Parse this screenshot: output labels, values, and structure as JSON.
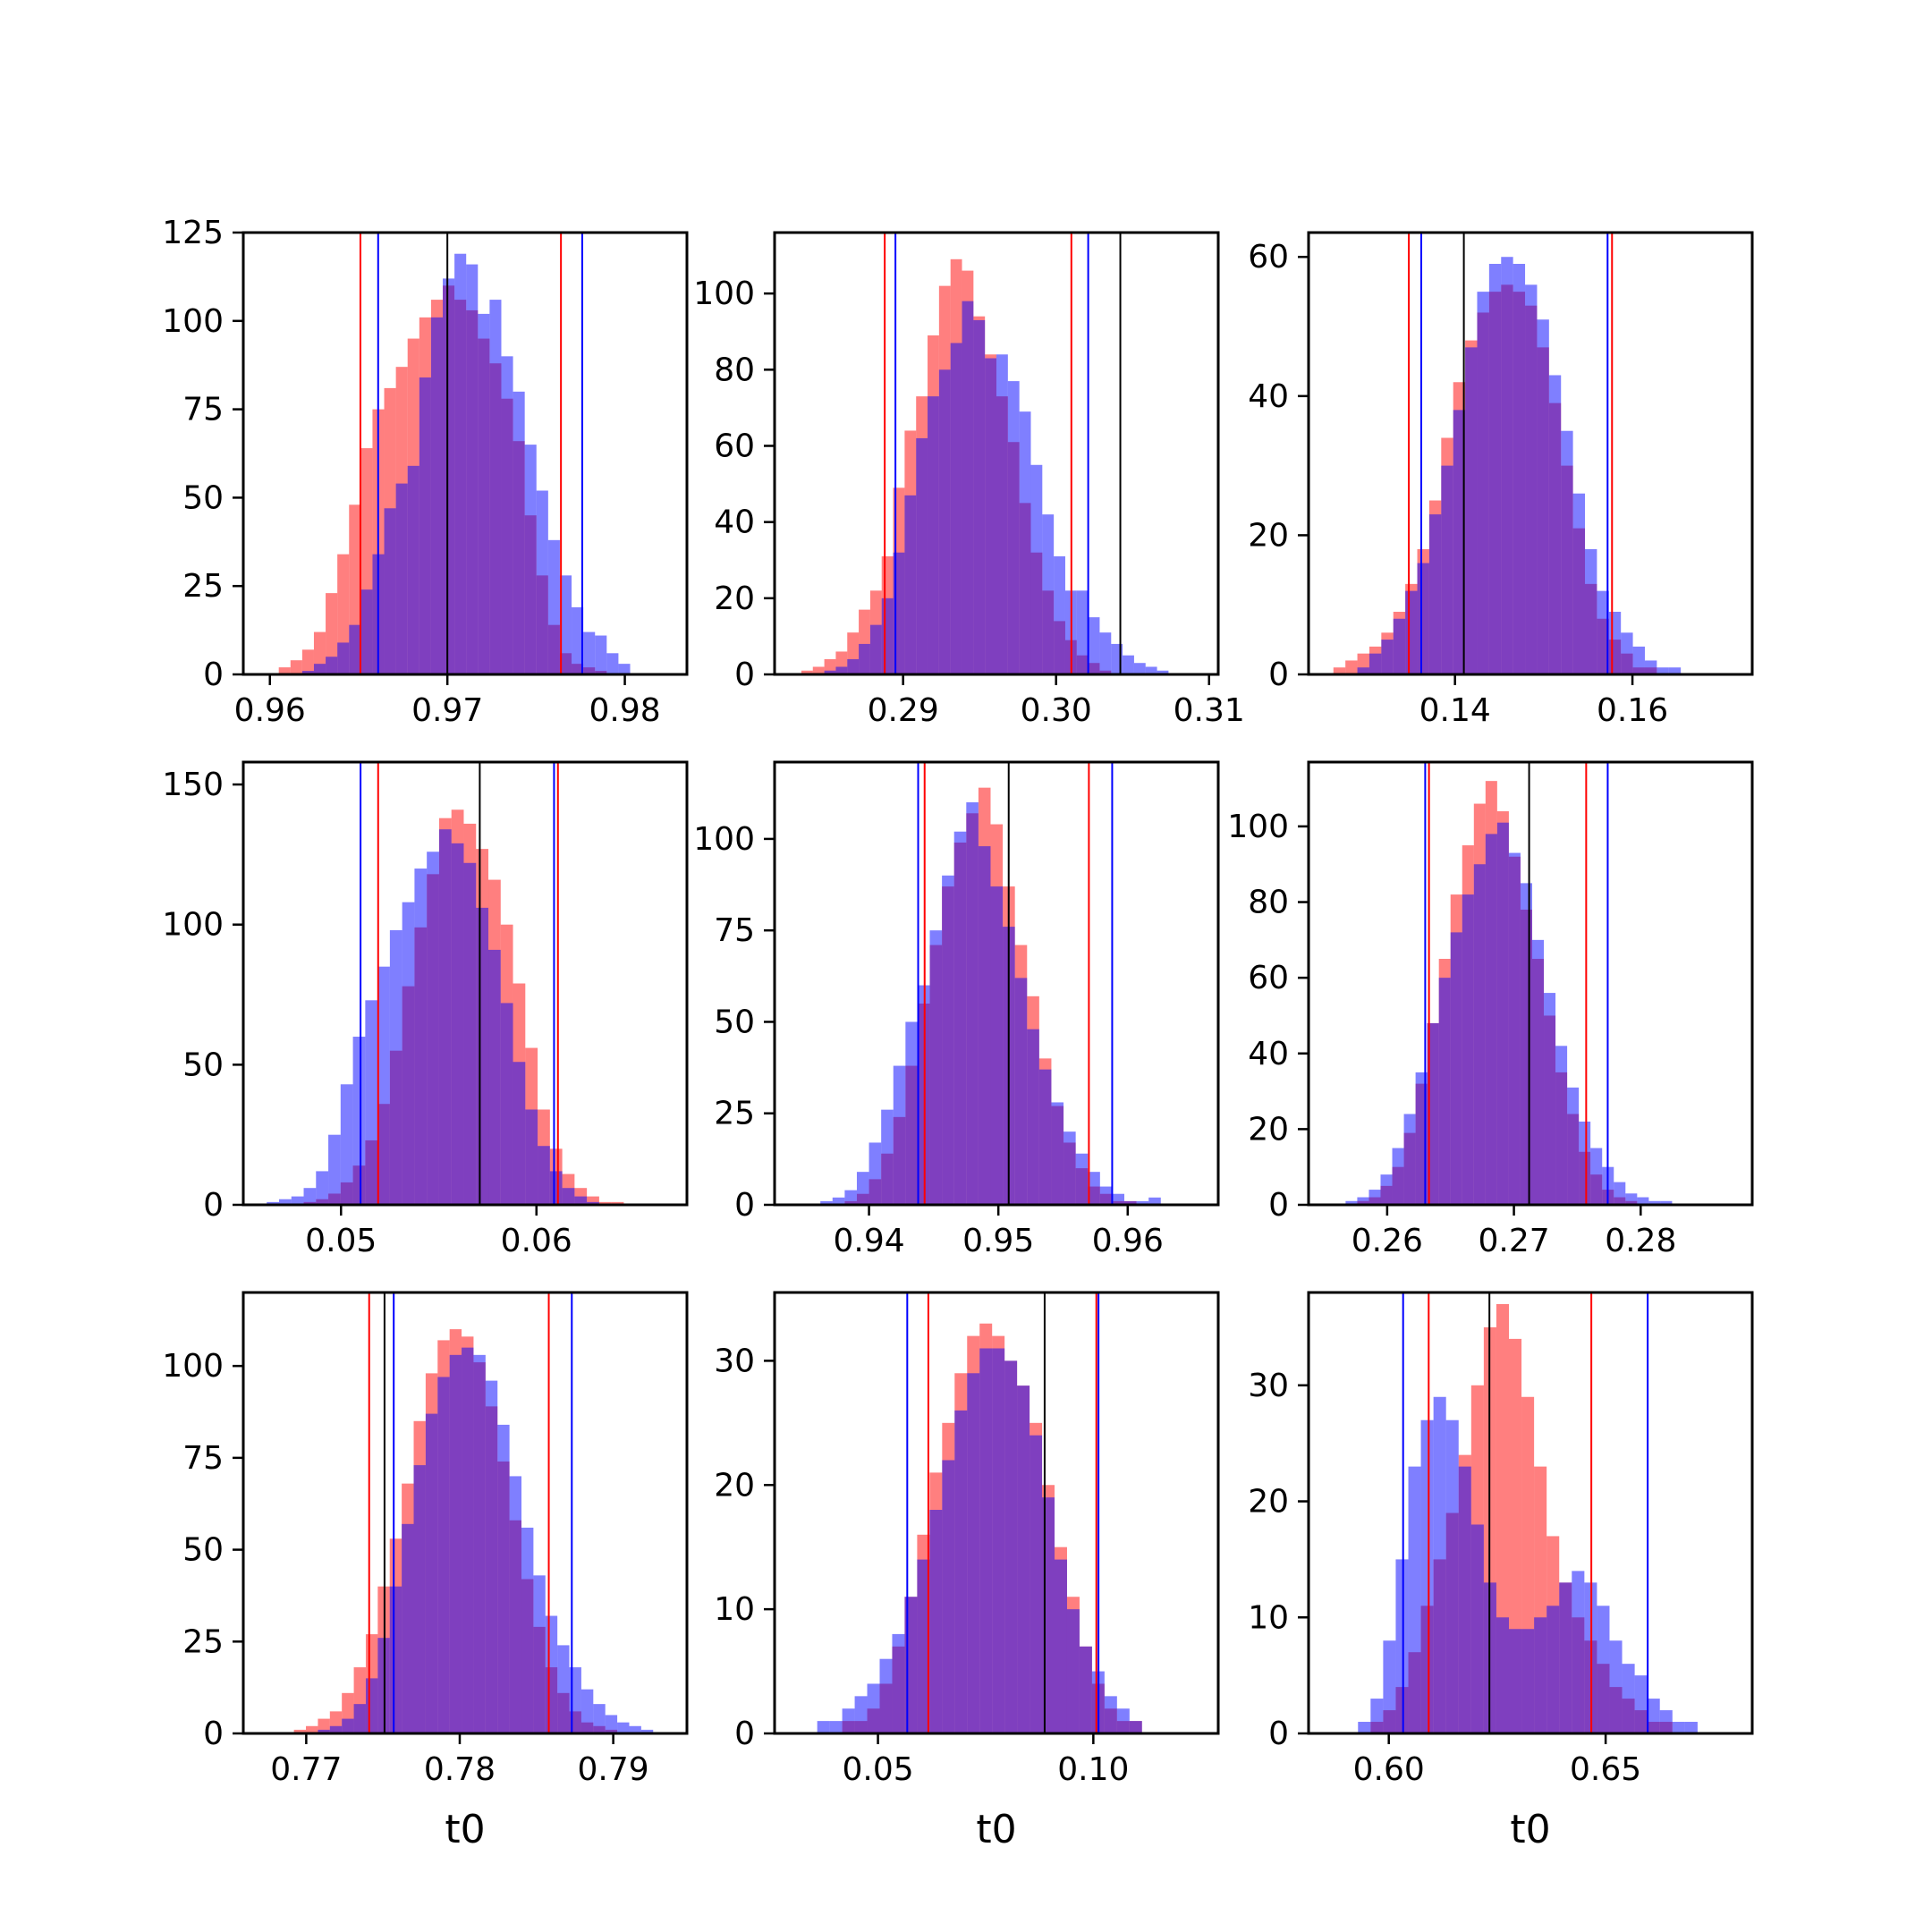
{
  "colors": {
    "red_series": "#ff0000",
    "blue_series": "#0000ff",
    "marker_black": "#000000",
    "bar_alpha": 0.5
  },
  "chart_data": [
    {
      "type": "histogram",
      "xlim": [
        0.9585,
        0.9835
      ],
      "ylim": [
        0,
        125
      ],
      "xticks": [
        0.96,
        0.97,
        0.98
      ],
      "xtick_labels": [
        "0.96",
        "0.97",
        "0.98"
      ],
      "yticks": [
        0,
        25,
        50,
        75,
        100,
        125
      ],
      "ytick_labels": [
        "0",
        "25",
        "50",
        "75",
        "100",
        "125"
      ],
      "xlabel": "",
      "bin_start": 0.9605,
      "bin_width": 0.00066,
      "series": [
        {
          "color": "red",
          "counts": [
            2,
            4,
            7,
            12,
            23,
            34,
            48,
            64,
            75,
            81,
            87,
            95,
            101,
            106,
            110,
            106,
            103,
            95,
            88,
            78,
            66,
            45,
            28,
            14,
            6,
            3,
            2,
            1,
            0,
            0,
            0
          ]
        },
        {
          "color": "blue",
          "counts": [
            0,
            0,
            1,
            3,
            5,
            9,
            14,
            24,
            34,
            47,
            54,
            59,
            84,
            101,
            112,
            119,
            116,
            102,
            106,
            90,
            80,
            65,
            52,
            38,
            28,
            19,
            12,
            11,
            6,
            3,
            0
          ]
        }
      ],
      "vlines": [
        {
          "color": "red",
          "x": 0.9651
        },
        {
          "color": "red",
          "x": 0.9764
        },
        {
          "color": "blue",
          "x": 0.9661
        },
        {
          "color": "blue",
          "x": 0.9776
        },
        {
          "color": "black",
          "x": 0.97
        }
      ]
    },
    {
      "type": "histogram",
      "xlim": [
        0.2816,
        0.3106
      ],
      "ylim": [
        0,
        116
      ],
      "xticks": [
        0.29,
        0.3,
        0.31
      ],
      "xtick_labels": [
        "0.29",
        "0.30",
        "0.31"
      ],
      "yticks": [
        0,
        20,
        40,
        60,
        80,
        100
      ],
      "ytick_labels": [
        "0",
        "20",
        "40",
        "60",
        "80",
        "100"
      ],
      "xlabel": "",
      "bin_start": 0.2826,
      "bin_width": 0.00075,
      "series": [
        {
          "color": "red",
          "counts": [
            0,
            1,
            2,
            4,
            6,
            11,
            17,
            22,
            31,
            49,
            64,
            73,
            89,
            102,
            109,
            106,
            94,
            84,
            73,
            61,
            45,
            32,
            22,
            14,
            9,
            5,
            3,
            1,
            0,
            0,
            0,
            0,
            0,
            0,
            0
          ]
        },
        {
          "color": "blue",
          "counts": [
            0,
            0,
            0,
            1,
            2,
            4,
            8,
            13,
            20,
            32,
            47,
            62,
            73,
            80,
            87,
            98,
            93,
            83,
            84,
            77,
            69,
            55,
            42,
            31,
            22,
            22,
            15,
            11,
            8,
            5,
            3,
            2,
            1,
            0,
            0
          ]
        }
      ],
      "vlines": [
        {
          "color": "red",
          "x": 0.2888
        },
        {
          "color": "red",
          "x": 0.301
        },
        {
          "color": "blue",
          "x": 0.2895
        },
        {
          "color": "blue",
          "x": 0.3021
        },
        {
          "color": "black",
          "x": 0.3042
        }
      ]
    },
    {
      "type": "histogram",
      "xlim": [
        0.1235,
        0.1735
      ],
      "ylim": [
        0,
        63.5
      ],
      "xticks": [
        0.14,
        0.16
      ],
      "xtick_labels": [
        "0.14",
        "0.16"
      ],
      "yticks": [
        0,
        20,
        40,
        60
      ],
      "ytick_labels": [
        "0",
        "20",
        "40",
        "60"
      ],
      "xlabel": "",
      "bin_start": 0.1263,
      "bin_width": 0.00135,
      "series": [
        {
          "color": "red",
          "counts": [
            1,
            2,
            3,
            4,
            6,
            9,
            13,
            18,
            25,
            34,
            42,
            48,
            52,
            55,
            56,
            55,
            53,
            47,
            39,
            30,
            21,
            13,
            8,
            5,
            3,
            1,
            1,
            0,
            0,
            0,
            0,
            0,
            0
          ]
        },
        {
          "color": "blue",
          "counts": [
            0,
            0,
            1,
            3,
            5,
            8,
            12,
            16,
            23,
            30,
            38,
            47,
            55,
            59,
            60,
            59,
            56,
            51,
            43,
            35,
            26,
            18,
            12,
            9,
            6,
            4,
            2,
            1,
            1,
            0,
            0,
            0,
            0
          ]
        }
      ],
      "vlines": [
        {
          "color": "red",
          "x": 0.1348
        },
        {
          "color": "red",
          "x": 0.1577
        },
        {
          "color": "blue",
          "x": 0.1362
        },
        {
          "color": "blue",
          "x": 0.1572
        },
        {
          "color": "black",
          "x": 0.141
        }
      ]
    },
    {
      "type": "histogram",
      "xlim": [
        0.045,
        0.0677
      ],
      "ylim": [
        0,
        158
      ],
      "xticks": [
        0.05,
        0.06
      ],
      "xtick_labels": [
        "0.05",
        "0.06"
      ],
      "yticks": [
        0,
        50,
        100,
        150
      ],
      "ytick_labels": [
        "0",
        "50",
        "100",
        "150"
      ],
      "xlabel": "",
      "bin_start": 0.0462,
      "bin_width": 0.00063,
      "series": [
        {
          "color": "red",
          "counts": [
            0,
            0,
            0,
            1,
            2,
            4,
            8,
            14,
            23,
            36,
            55,
            78,
            99,
            118,
            138,
            141,
            136,
            127,
            116,
            100,
            79,
            56,
            34,
            20,
            11,
            6,
            3,
            1,
            1,
            0,
            0
          ]
        },
        {
          "color": "blue",
          "counts": [
            1,
            2,
            3,
            6,
            12,
            25,
            43,
            60,
            73,
            85,
            98,
            108,
            120,
            126,
            134,
            129,
            122,
            106,
            91,
            72,
            51,
            34,
            21,
            12,
            6,
            3,
            1,
            0,
            0,
            0,
            0
          ]
        }
      ],
      "vlines": [
        {
          "color": "red",
          "x": 0.0519
        },
        {
          "color": "red",
          "x": 0.0611
        },
        {
          "color": "blue",
          "x": 0.051
        },
        {
          "color": "blue",
          "x": 0.0609
        },
        {
          "color": "black",
          "x": 0.0571
        }
      ]
    },
    {
      "type": "histogram",
      "xlim": [
        0.9327,
        0.967
      ],
      "ylim": [
        0,
        121
      ],
      "xticks": [
        0.94,
        0.95,
        0.96
      ],
      "xtick_labels": [
        "0.94",
        "0.95",
        "0.96"
      ],
      "yticks": [
        0,
        25,
        50,
        75,
        100
      ],
      "ytick_labels": [
        "0",
        "25",
        "50",
        "75",
        "100"
      ],
      "xlabel": "",
      "bin_start": 0.9353,
      "bin_width": 0.00094,
      "series": [
        {
          "color": "red",
          "counts": [
            0,
            0,
            0,
            1,
            3,
            7,
            14,
            24,
            38,
            55,
            71,
            87,
            99,
            107,
            114,
            104,
            87,
            71,
            57,
            40,
            27,
            17,
            10,
            5,
            3,
            1,
            1,
            0,
            0,
            0
          ]
        },
        {
          "color": "blue",
          "counts": [
            0,
            1,
            2,
            4,
            9,
            17,
            26,
            38,
            50,
            60,
            75,
            90,
            102,
            110,
            98,
            87,
            76,
            62,
            48,
            37,
            28,
            20,
            14,
            9,
            5,
            3,
            1,
            1,
            2,
            0
          ]
        }
      ],
      "vlines": [
        {
          "color": "red",
          "x": 0.9443
        },
        {
          "color": "red",
          "x": 0.957
        },
        {
          "color": "blue",
          "x": 0.9438
        },
        {
          "color": "blue",
          "x": 0.9588
        },
        {
          "color": "black",
          "x": 0.9508
        }
      ]
    },
    {
      "type": "histogram",
      "xlim": [
        0.2538,
        0.2888
      ],
      "ylim": [
        0,
        117
      ],
      "xticks": [
        0.26,
        0.27,
        0.28
      ],
      "xtick_labels": [
        "0.26",
        "0.27",
        "0.28"
      ],
      "yticks": [
        0,
        20,
        40,
        60,
        80,
        100
      ],
      "ytick_labels": [
        "0",
        "20",
        "40",
        "60",
        "80",
        "100"
      ],
      "xlabel": "",
      "bin_start": 0.2558,
      "bin_width": 0.00092,
      "series": [
        {
          "color": "red",
          "counts": [
            0,
            0,
            1,
            2,
            5,
            10,
            19,
            32,
            48,
            65,
            82,
            95,
            106,
            112,
            104,
            92,
            78,
            65,
            50,
            35,
            24,
            14,
            8,
            4,
            2,
            1,
            0,
            0,
            0,
            0,
            0,
            0
          ]
        },
        {
          "color": "blue",
          "counts": [
            0,
            1,
            2,
            4,
            8,
            15,
            24,
            35,
            48,
            60,
            72,
            82,
            90,
            98,
            101,
            93,
            85,
            70,
            56,
            42,
            31,
            22,
            15,
            10,
            6,
            3,
            2,
            1,
            1,
            0,
            0,
            0
          ]
        }
      ],
      "vlines": [
        {
          "color": "red",
          "x": 0.2633
        },
        {
          "color": "red",
          "x": 0.2757
        },
        {
          "color": "blue",
          "x": 0.263
        },
        {
          "color": "blue",
          "x": 0.2774
        },
        {
          "color": "black",
          "x": 0.2712
        }
      ]
    },
    {
      "type": "histogram",
      "xlim": [
        0.7659,
        0.7948
      ],
      "ylim": [
        0,
        120
      ],
      "xticks": [
        0.77,
        0.78,
        0.79
      ],
      "xtick_labels": [
        "0.77",
        "0.78",
        "0.79"
      ],
      "yticks": [
        0,
        25,
        50,
        75,
        100
      ],
      "ytick_labels": [
        "0",
        "25",
        "50",
        "75",
        "100"
      ],
      "xlabel": "t0",
      "bin_start": 0.7692,
      "bin_width": 0.00078,
      "series": [
        {
          "color": "red",
          "counts": [
            1,
            2,
            4,
            6,
            11,
            18,
            27,
            40,
            53,
            68,
            85,
            98,
            107,
            110,
            108,
            101,
            89,
            74,
            58,
            42,
            29,
            18,
            11,
            6,
            3,
            2,
            1,
            0,
            0,
            0,
            0,
            0
          ]
        },
        {
          "color": "blue",
          "counts": [
            0,
            0,
            1,
            2,
            4,
            8,
            15,
            26,
            40,
            57,
            73,
            87,
            97,
            103,
            105,
            103,
            96,
            84,
            70,
            56,
            43,
            32,
            24,
            18,
            12,
            8,
            5,
            3,
            2,
            1,
            0,
            0
          ]
        }
      ],
      "vlines": [
        {
          "color": "red",
          "x": 0.7741
        },
        {
          "color": "red",
          "x": 0.7858
        },
        {
          "color": "blue",
          "x": 0.7757
        },
        {
          "color": "blue",
          "x": 0.7873
        },
        {
          "color": "black",
          "x": 0.7751
        }
      ]
    },
    {
      "type": "histogram",
      "xlim": [
        0.026,
        0.129
      ],
      "ylim": [
        0,
        35.5
      ],
      "xticks": [
        0.05,
        0.1
      ],
      "xtick_labels": [
        "0.05",
        "0.10"
      ],
      "yticks": [
        0,
        10,
        20,
        30
      ],
      "ytick_labels": [
        "0",
        "10",
        "20",
        "30"
      ],
      "xlabel": "t0",
      "bin_start": 0.033,
      "bin_width": 0.0029,
      "series": [
        {
          "color": "red",
          "counts": [
            0,
            0,
            0,
            1,
            1,
            2,
            4,
            7,
            11,
            16,
            21,
            25,
            29,
            32,
            33,
            32,
            30,
            28,
            25,
            20,
            15,
            11,
            7,
            4,
            2,
            1,
            1,
            0,
            0,
            0
          ]
        },
        {
          "color": "blue",
          "counts": [
            0,
            1,
            1,
            2,
            3,
            4,
            6,
            8,
            11,
            14,
            18,
            22,
            26,
            29,
            31,
            31,
            30,
            28,
            24,
            19,
            14,
            10,
            7,
            5,
            3,
            2,
            1,
            0,
            0,
            0
          ]
        }
      ],
      "vlines": [
        {
          "color": "red",
          "x": 0.0617
        },
        {
          "color": "red",
          "x": 0.1007
        },
        {
          "color": "blue",
          "x": 0.0568
        },
        {
          "color": "blue",
          "x": 0.1012
        },
        {
          "color": "black",
          "x": 0.0887
        }
      ]
    },
    {
      "type": "histogram",
      "xlim": [
        0.5815,
        0.6838
      ],
      "ylim": [
        0,
        38
      ],
      "xticks": [
        0.6,
        0.65
      ],
      "xtick_labels": [
        "0.60",
        "0.65"
      ],
      "yticks": [
        0,
        10,
        20,
        30
      ],
      "ytick_labels": [
        "0",
        "10",
        "20",
        "30"
      ],
      "xlabel": "t0",
      "bin_start": 0.59,
      "bin_width": 0.0029,
      "series": [
        {
          "color": "red",
          "counts": [
            0,
            0,
            1,
            2,
            4,
            7,
            11,
            15,
            19,
            24,
            30,
            35,
            37,
            34,
            29,
            23,
            17,
            13,
            10,
            8,
            6,
            4,
            3,
            2,
            1,
            1,
            0,
            0,
            0,
            0
          ]
        },
        {
          "color": "blue",
          "counts": [
            0,
            1,
            3,
            8,
            15,
            23,
            27,
            29,
            27,
            23,
            18,
            13,
            10,
            9,
            9,
            10,
            11,
            13,
            14,
            13,
            11,
            8,
            6,
            5,
            3,
            2,
            1,
            1,
            0,
            0
          ]
        }
      ],
      "vlines": [
        {
          "color": "red",
          "x": 0.6092
        },
        {
          "color": "red",
          "x": 0.6467
        },
        {
          "color": "blue",
          "x": 0.6033
        },
        {
          "color": "blue",
          "x": 0.6597
        },
        {
          "color": "black",
          "x": 0.6232
        }
      ]
    }
  ]
}
